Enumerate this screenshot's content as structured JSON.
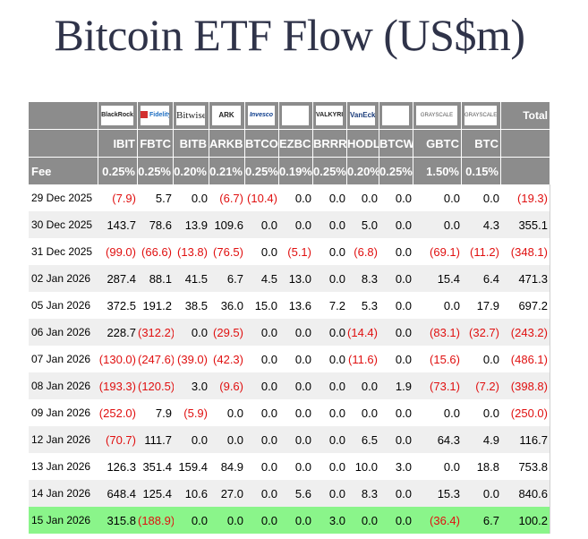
{
  "title": "Bitcoin ETF Flow (US$m)",
  "header": {
    "logos": [
      {
        "name": "blackrock-logo",
        "text": "BlackRock"
      },
      {
        "name": "fidelity-logo",
        "text": "Fidelity"
      },
      {
        "name": "bitwise-logo",
        "text": "Bitwise"
      },
      {
        "name": "ark-logo",
        "text": "ARK"
      },
      {
        "name": "invesco-logo",
        "text": "Invesco"
      },
      {
        "name": "franklin-logo",
        "text": ""
      },
      {
        "name": "valkyrie-logo",
        "text": "VALKYRIE"
      },
      {
        "name": "vaneck-logo",
        "text": "VanEck"
      },
      {
        "name": "wisdomtree-logo",
        "text": ""
      },
      {
        "name": "grayscale-gbtc-logo",
        "text": "GRAYSCALE"
      },
      {
        "name": "grayscale-btc-logo",
        "text": "GRAYSCALE"
      }
    ],
    "total_label": "Total",
    "tickers": [
      "IBIT",
      "FBTC",
      "BITB",
      "ARKB",
      "BTCO",
      "EZBC",
      "BRRR",
      "HODL",
      "BTCW",
      "GBTC",
      "BTC"
    ],
    "fee_label": "Fee",
    "fees": [
      "0.25%",
      "0.25%",
      "0.20%",
      "0.21%",
      "0.25%",
      "0.19%",
      "0.25%",
      "0.20%",
      "0.25%",
      "1.50%",
      "0.15%"
    ]
  },
  "rows": [
    {
      "date": "29 Dec 2025",
      "values": [
        "(7.9)",
        "5.7",
        "0.0",
        "(6.7)",
        "(10.4)",
        "0.0",
        "0.0",
        "0.0",
        "0.0",
        "0.0",
        "0.0"
      ],
      "total": "(19.3)"
    },
    {
      "date": "30 Dec 2025",
      "values": [
        "143.7",
        "78.6",
        "13.9",
        "109.6",
        "0.0",
        "0.0",
        "0.0",
        "5.0",
        "0.0",
        "0.0",
        "4.3"
      ],
      "total": "355.1"
    },
    {
      "date": "31 Dec 2025",
      "values": [
        "(99.0)",
        "(66.6)",
        "(13.8)",
        "(76.5)",
        "0.0",
        "(5.1)",
        "0.0",
        "(6.8)",
        "0.0",
        "(69.1)",
        "(11.2)"
      ],
      "total": "(348.1)"
    },
    {
      "date": "02 Jan 2026",
      "values": [
        "287.4",
        "88.1",
        "41.5",
        "6.7",
        "4.5",
        "13.0",
        "0.0",
        "8.3",
        "0.0",
        "15.4",
        "6.4"
      ],
      "total": "471.3"
    },
    {
      "date": "05 Jan 2026",
      "values": [
        "372.5",
        "191.2",
        "38.5",
        "36.0",
        "15.0",
        "13.6",
        "7.2",
        "5.3",
        "0.0",
        "0.0",
        "17.9"
      ],
      "total": "697.2"
    },
    {
      "date": "06 Jan 2026",
      "values": [
        "228.7",
        "(312.2)",
        "0.0",
        "(29.5)",
        "0.0",
        "0.0",
        "0.0",
        "(14.4)",
        "0.0",
        "(83.1)",
        "(32.7)"
      ],
      "total": "(243.2)"
    },
    {
      "date": "07 Jan 2026",
      "values": [
        "(130.0)",
        "(247.6)",
        "(39.0)",
        "(42.3)",
        "0.0",
        "0.0",
        "0.0",
        "(11.6)",
        "0.0",
        "(15.6)",
        "0.0"
      ],
      "total": "(486.1)"
    },
    {
      "date": "08 Jan 2026",
      "values": [
        "(193.3)",
        "(120.5)",
        "3.0",
        "(9.6)",
        "0.0",
        "0.0",
        "0.0",
        "0.0",
        "1.9",
        "(73.1)",
        "(7.2)"
      ],
      "total": "(398.8)"
    },
    {
      "date": "09 Jan 2026",
      "values": [
        "(252.0)",
        "7.9",
        "(5.9)",
        "0.0",
        "0.0",
        "0.0",
        "0.0",
        "0.0",
        "0.0",
        "0.0",
        "0.0"
      ],
      "total": "(250.0)"
    },
    {
      "date": "12 Jan 2026",
      "values": [
        "(70.7)",
        "111.7",
        "0.0",
        "0.0",
        "0.0",
        "0.0",
        "0.0",
        "6.5",
        "0.0",
        "64.3",
        "4.9"
      ],
      "total": "116.7"
    },
    {
      "date": "13 Jan 2026",
      "values": [
        "126.3",
        "351.4",
        "159.4",
        "84.9",
        "0.0",
        "0.0",
        "0.0",
        "10.0",
        "3.0",
        "0.0",
        "18.8"
      ],
      "total": "753.8"
    },
    {
      "date": "14 Jan 2026",
      "values": [
        "648.4",
        "125.4",
        "10.6",
        "27.0",
        "0.0",
        "5.6",
        "0.0",
        "8.3",
        "0.0",
        "15.3",
        "0.0"
      ],
      "total": "840.6"
    },
    {
      "date": "15 Jan 2026",
      "values": [
        "315.8",
        "(188.9)",
        "0.0",
        "0.0",
        "0.0",
        "0.0",
        "3.0",
        "0.0",
        "0.0",
        "(36.4)",
        "6.7"
      ],
      "total": "100.2",
      "highlight": true
    }
  ],
  "colors": {
    "header_bg": "#8c8c8c",
    "negative": "#e01010",
    "highlight_row": "#8af58a",
    "alt_row": "#efefef",
    "title": "#2f3349"
  }
}
